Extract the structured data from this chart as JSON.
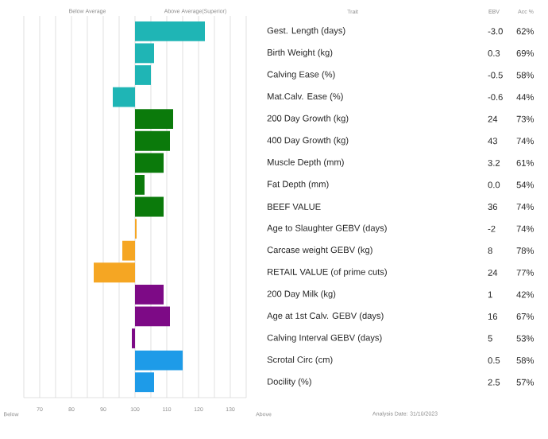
{
  "chart_data": {
    "type": "bar",
    "orientation": "horizontal",
    "categories": [
      "Gest. Length (days)",
      "Birth Weight (kg)",
      "Calving Ease (%)",
      "Mat.Calv. Ease (%)",
      "200 Day Growth (kg)",
      "400 Day Growth (kg)",
      "Muscle Depth (mm)",
      "Fat Depth (mm)",
      "BEEF VALUE",
      "Age to Slaughter GEBV (days)",
      "Carcase weight GEBV (kg)",
      "RETAIL VALUE (of prime cuts)",
      "200 Day Milk (kg)",
      "Age at 1st Calv. GEBV (days)",
      "Calving Interval GEBV (days)",
      "Scrotal Circ (cm)",
      "Docility (%)"
    ],
    "base": [
      100,
      100,
      100,
      100,
      100,
      100,
      100,
      100,
      100,
      100,
      100,
      100,
      100,
      100,
      100,
      100,
      100
    ],
    "values": [
      22,
      6,
      5,
      -7,
      12,
      11,
      9,
      3,
      9,
      0.5,
      -4,
      -13,
      9,
      11,
      -1,
      15,
      6
    ],
    "colors": [
      "#1fb5b5",
      "#1fb5b5",
      "#1fb5b5",
      "#1fb5b5",
      "#0b7a0b",
      "#0b7a0b",
      "#0b7a0b",
      "#0b7a0b",
      "#0b7a0b",
      "#f5a623",
      "#f5a623",
      "#f5a623",
      "#7d0a86",
      "#7d0a86",
      "#7d0a86",
      "#1e9be8",
      "#1e9be8"
    ],
    "xlim": [
      65,
      135
    ],
    "xticks": [
      {
        "value": 65,
        "label": null
      },
      70,
      {
        "value": 75,
        "label": null
      },
      80,
      {
        "value": 85,
        "label": null
      },
      90,
      {
        "value": 95,
        "label": null
      },
      100,
      {
        "value": 105,
        "label": null
      },
      110,
      {
        "value": 115,
        "label": null
      },
      120,
      {
        "value": 125,
        "label": null
      },
      130,
      {
        "value": 135,
        "label": null
      }
    ],
    "grid": "x",
    "annotations": [
      "Below Average",
      "Above Average(Superior)",
      "Trait",
      "EBV",
      "Acc %",
      "Below",
      "Above",
      "Analysis Date: 31/10/2023",
      "-3.0",
      "62%",
      "0.3",
      "69%",
      "-0.5",
      "58%",
      "-0.6",
      "44%",
      "24",
      "73%",
      "43",
      "74%",
      "3.2",
      "61%",
      "0.0",
      "54%",
      "36",
      "74%",
      "-2",
      "74%",
      "8",
      "78%",
      "24",
      "77%",
      "1",
      "42%",
      "16",
      "67%",
      "5",
      "53%",
      "0.5",
      "58%",
      "2.5",
      "57%"
    ]
  }
}
